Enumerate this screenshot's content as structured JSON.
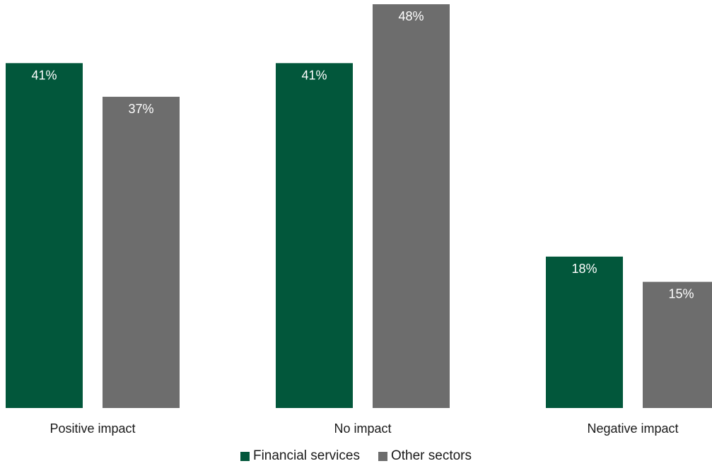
{
  "chart_data": {
    "type": "bar",
    "categories": [
      "Positive impact",
      "No impact",
      "Negative impact"
    ],
    "series": [
      {
        "name": "Financial services",
        "values": [
          41,
          41,
          18
        ],
        "color": "#02573b"
      },
      {
        "name": "Other sectors",
        "values": [
          37,
          48,
          15
        ],
        "color": "#6d6d6d"
      }
    ],
    "value_suffix": "%",
    "ylim": [
      0,
      48
    ],
    "grid": false,
    "legend_position": "bottom-center"
  }
}
